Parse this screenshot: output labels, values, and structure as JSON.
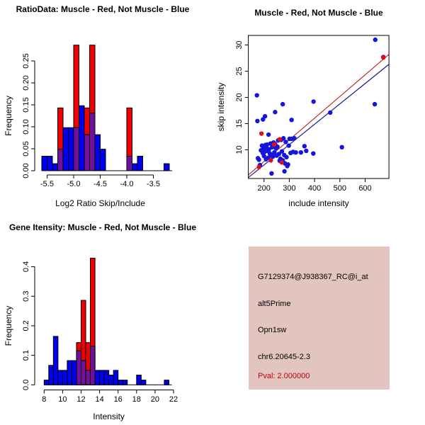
{
  "figure": {
    "background": "#ffffff"
  },
  "colors": {
    "hist_red": "#F00000",
    "hist_blue": "#0000F0",
    "hist_overlap_purple": "#70109C",
    "scatter_blue": "#1414DC",
    "scatter_red": "#E01010",
    "fit_line_red": "#C03030",
    "fit_line_blue": "#18188C",
    "info_box": "#E2C5BF",
    "pval_red": "#C00000",
    "axis_black": "#000000"
  },
  "info_panel": {
    "probe_id": "G7129374@J938367_RC@i_at",
    "splice_event": "alt5Prime",
    "gene": "Opn1sw",
    "location": "chr6.20645-2.3",
    "pval": "Pval: 2.000000"
  },
  "chart_data": [
    {
      "id": "ratio_hist",
      "type": "bar",
      "subtype": "overlaid-histogram",
      "title": "RatioData: Muscle - Red, Not Muscle - Blue",
      "xlabel": "Log2 Ratio Skip/Include",
      "ylabel": "Frequency",
      "xlim": [
        -5.75,
        -3.1
      ],
      "ylim": [
        0,
        0.29
      ],
      "grid": false,
      "legend": "none",
      "bin_width": 0.1,
      "xticks": [
        "-5.5",
        "-5.0",
        "-4.5",
        "-4.0",
        "-3.5"
      ],
      "xtick_values": [
        -5.5,
        -5.0,
        -4.5,
        -4.0,
        -3.5
      ],
      "yticks": [
        "0.00",
        "0.05",
        "0.10",
        "0.15",
        "0.20",
        "0.25"
      ],
      "ytick_values": [
        0,
        0.05,
        0.1,
        0.15,
        0.2,
        0.25
      ],
      "series": [
        {
          "name": "Muscle (red)",
          "color": "#F00000",
          "bins": [
            {
              "x": -5.3,
              "h": 0.143
            },
            {
              "x": -5.0,
              "h": 0.286
            },
            {
              "x": -4.8,
              "h": 0.143
            },
            {
              "x": -4.7,
              "h": 0.286
            },
            {
              "x": -4.0,
              "h": 0.143
            }
          ]
        },
        {
          "name": "Not Muscle (blue)",
          "color": "#0000F0",
          "bins": [
            {
              "x": -5.6,
              "h": 0.033
            },
            {
              "x": -5.5,
              "h": 0.033
            },
            {
              "x": -5.4,
              "h": 0.016
            },
            {
              "x": -5.3,
              "h": 0.049
            },
            {
              "x": -5.2,
              "h": 0.098
            },
            {
              "x": -5.1,
              "h": 0.098
            },
            {
              "x": -5.0,
              "h": 0.098
            },
            {
              "x": -4.9,
              "h": 0.148
            },
            {
              "x": -4.8,
              "h": 0.082
            },
            {
              "x": -4.7,
              "h": 0.131
            },
            {
              "x": -4.6,
              "h": 0.082
            },
            {
              "x": -4.5,
              "h": 0.049
            },
            {
              "x": -4.0,
              "h": 0.033
            },
            {
              "x": -3.9,
              "h": 0.016
            },
            {
              "x": -3.8,
              "h": 0.033
            },
            {
              "x": -3.3,
              "h": 0.016
            }
          ]
        }
      ],
      "overlap_color": "#70109C"
    },
    {
      "id": "scatter",
      "type": "scatter",
      "title": "Muscle - Red, Not Muscle - Blue",
      "xlabel": "include intensity",
      "ylabel": "skip intensity",
      "xlim": [
        138,
        694
      ],
      "ylim": [
        4.4,
        31.8
      ],
      "grid": false,
      "legend": "none",
      "xticks": [
        "200",
        "300",
        "400",
        "500",
        "600"
      ],
      "xtick_values": [
        200,
        300,
        400,
        500,
        600
      ],
      "yticks": [
        "10",
        "15",
        "20",
        "25",
        "30"
      ],
      "ytick_values": [
        10,
        15,
        20,
        25,
        30
      ],
      "series": [
        {
          "name": "Not Muscle (blue)",
          "color": "#1414DC",
          "points": [
            [
              172,
              20.4
            ],
            [
              640,
              31
            ],
            [
              672,
              27.7
            ],
            [
              638,
              18.7
            ],
            [
              508,
              10.5
            ],
            [
              396,
              19.2
            ],
            [
              462,
              17.1
            ],
            [
              309,
              15.7
            ],
            [
              244,
              17.2
            ],
            [
              274,
              18.7
            ],
            [
              204,
              16.4
            ],
            [
              196,
              15.8
            ],
            [
              174,
              15.5
            ],
            [
              218,
              12.9
            ],
            [
              230,
              5.5
            ],
            [
              281,
              5.9
            ],
            [
              176,
              8.4
            ],
            [
              180,
              8.1
            ],
            [
              184,
              7.1
            ],
            [
              188,
              9.9
            ],
            [
              192,
              10.8
            ],
            [
              195,
              9.4
            ],
            [
              198,
              10.2
            ],
            [
              200,
              8.8
            ],
            [
              202,
              9.6
            ],
            [
              205,
              10.9
            ],
            [
              208,
              8.2
            ],
            [
              210,
              10.4
            ],
            [
              212,
              11
            ],
            [
              214,
              9.8
            ],
            [
              217,
              8.5
            ],
            [
              220,
              10.1
            ],
            [
              223,
              9.3
            ],
            [
              226,
              11.2
            ],
            [
              229,
              9
            ],
            [
              232,
              10.5
            ],
            [
              235,
              8.7
            ],
            [
              238,
              11.4
            ],
            [
              241,
              9.5
            ],
            [
              244,
              11.1
            ],
            [
              247,
              10.3
            ],
            [
              250,
              8.9
            ],
            [
              253,
              10.6
            ],
            [
              256,
              11.8
            ],
            [
              259,
              9.2
            ],
            [
              262,
              7.9
            ],
            [
              265,
              8.3
            ],
            [
              268,
              11.9
            ],
            [
              271,
              9.7
            ],
            [
              274,
              8
            ],
            [
              277,
              12.2
            ],
            [
              280,
              9
            ],
            [
              283,
              7.4
            ],
            [
              286,
              11.5
            ],
            [
              289,
              8.6
            ],
            [
              292,
              6.9
            ],
            [
              295,
              7.2
            ],
            [
              298,
              10.8
            ],
            [
              301,
              12.1
            ],
            [
              305,
              9.4
            ],
            [
              310,
              12.1
            ],
            [
              315,
              9.6
            ],
            [
              320,
              12.2
            ],
            [
              326,
              9.5
            ],
            [
              346,
              9.5
            ],
            [
              360,
              10.7
            ],
            [
              367,
              9.8
            ],
            [
              395,
              9.3
            ]
          ]
        },
        {
          "name": "Muscle (red)",
          "color": "#E01010",
          "points": [
            [
              190,
              13.1
            ],
            [
              240,
              11
            ],
            [
              227,
              8
            ],
            [
              262,
              12
            ],
            [
              270,
              7.6
            ],
            [
              180,
              6.7
            ],
            [
              672,
              27.6
            ]
          ]
        }
      ],
      "fit_lines": [
        {
          "name": "muscle-fit",
          "color": "#C03030",
          "x1": 138,
          "y1": 5.2,
          "x2": 694,
          "y2": 28.2
        },
        {
          "name": "not-muscle-fit",
          "color": "#18188C",
          "x1": 138,
          "y1": 4.7,
          "x2": 694,
          "y2": 26.3
        }
      ]
    },
    {
      "id": "gene_hist",
      "type": "bar",
      "subtype": "overlaid-histogram",
      "title": "Gene Itensity: Muscle - Red, Not Muscle - Blue",
      "xlabel": "Intensity",
      "ylabel": "Frequency",
      "xlim": [
        7.5,
        22.4
      ],
      "ylim": [
        0,
        0.44
      ],
      "grid": false,
      "legend": "none",
      "bin_width": 0.5,
      "xticks": [
        "8",
        "10",
        "12",
        "14",
        "16",
        "18",
        "20",
        "22"
      ],
      "xtick_values": [
        8,
        10,
        12,
        14,
        16,
        18,
        20,
        22
      ],
      "yticks": [
        "0.0",
        "0.1",
        "0.2",
        "0.3",
        "0.4"
      ],
      "ytick_values": [
        0,
        0.1,
        0.2,
        0.3,
        0.4
      ],
      "series": [
        {
          "name": "Muscle (red)",
          "color": "#F00000",
          "bins": [
            {
              "x": 11.5,
              "h": 0.143
            },
            {
              "x": 12,
              "h": 0.286
            },
            {
              "x": 12.5,
              "h": 0.143
            },
            {
              "x": 13,
              "h": 0.429
            }
          ]
        },
        {
          "name": "Not Muscle (blue)",
          "color": "#0000F0",
          "bins": [
            {
              "x": 8,
              "h": 0.016
            },
            {
              "x": 8.5,
              "h": 0.066
            },
            {
              "x": 9,
              "h": 0.164
            },
            {
              "x": 9.5,
              "h": 0.049
            },
            {
              "x": 10,
              "h": 0.049
            },
            {
              "x": 10.5,
              "h": 0.082
            },
            {
              "x": 11,
              "h": 0.082
            },
            {
              "x": 11.5,
              "h": 0.115
            },
            {
              "x": 12,
              "h": 0.082
            },
            {
              "x": 12.5,
              "h": 0.049
            },
            {
              "x": 13,
              "h": 0.131
            },
            {
              "x": 13.5,
              "h": 0.049
            },
            {
              "x": 14,
              "h": 0.049
            },
            {
              "x": 14.5,
              "h": 0.049
            },
            {
              "x": 15,
              "h": 0.033
            },
            {
              "x": 15.5,
              "h": 0.049
            },
            {
              "x": 16,
              "h": 0.016
            },
            {
              "x": 16.5,
              "h": 0.016
            },
            {
              "x": 18,
              "h": 0.033
            },
            {
              "x": 18.5,
              "h": 0.016
            },
            {
              "x": 21,
              "h": 0.016
            }
          ]
        }
      ],
      "overlap_color": "#70109C"
    }
  ]
}
